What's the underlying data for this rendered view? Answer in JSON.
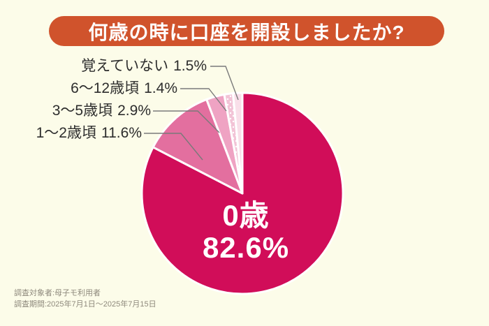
{
  "title": "何歳の時に口座を開設しましたか?",
  "footer": {
    "line1": "調査対象者:母子モ利用者",
    "line2": "調査期間:2025年7月1日〜2025年7月15日"
  },
  "colors": {
    "background": "#fcfce9",
    "banner": "#d0532c",
    "banner_text": "#ffffff",
    "label_text": "#2d2d2d",
    "leader_line": "#7a7a7a",
    "center_text": "#ffffff",
    "footer_text": "#8e897c",
    "slice_gap": "#ffffff"
  },
  "chart_data": {
    "type": "pie",
    "title": "何歳の時に口座を開設しましたか?",
    "unit": "%",
    "start_angle_deg": 0,
    "direction": "clockwise",
    "legend_position": "callout-labels-left",
    "slices": [
      {
        "label": "0歳",
        "value": 82.6,
        "color": "#d10d59",
        "label_position": "inside"
      },
      {
        "label": "1〜2歳頃",
        "value": 11.6,
        "color": "#e36f9f",
        "label_position": "outside"
      },
      {
        "label": "3〜5歳頃",
        "value": 2.9,
        "color": "#efa3c3",
        "label_position": "outside"
      },
      {
        "label": "6〜12歳頃",
        "value": 1.4,
        "color": "#f2c3d6",
        "pattern": "white-dots",
        "label_position": "outside"
      },
      {
        "label": "覚えていない",
        "value": 1.5,
        "color": "#f9dfe9",
        "label_position": "outside"
      }
    ]
  }
}
